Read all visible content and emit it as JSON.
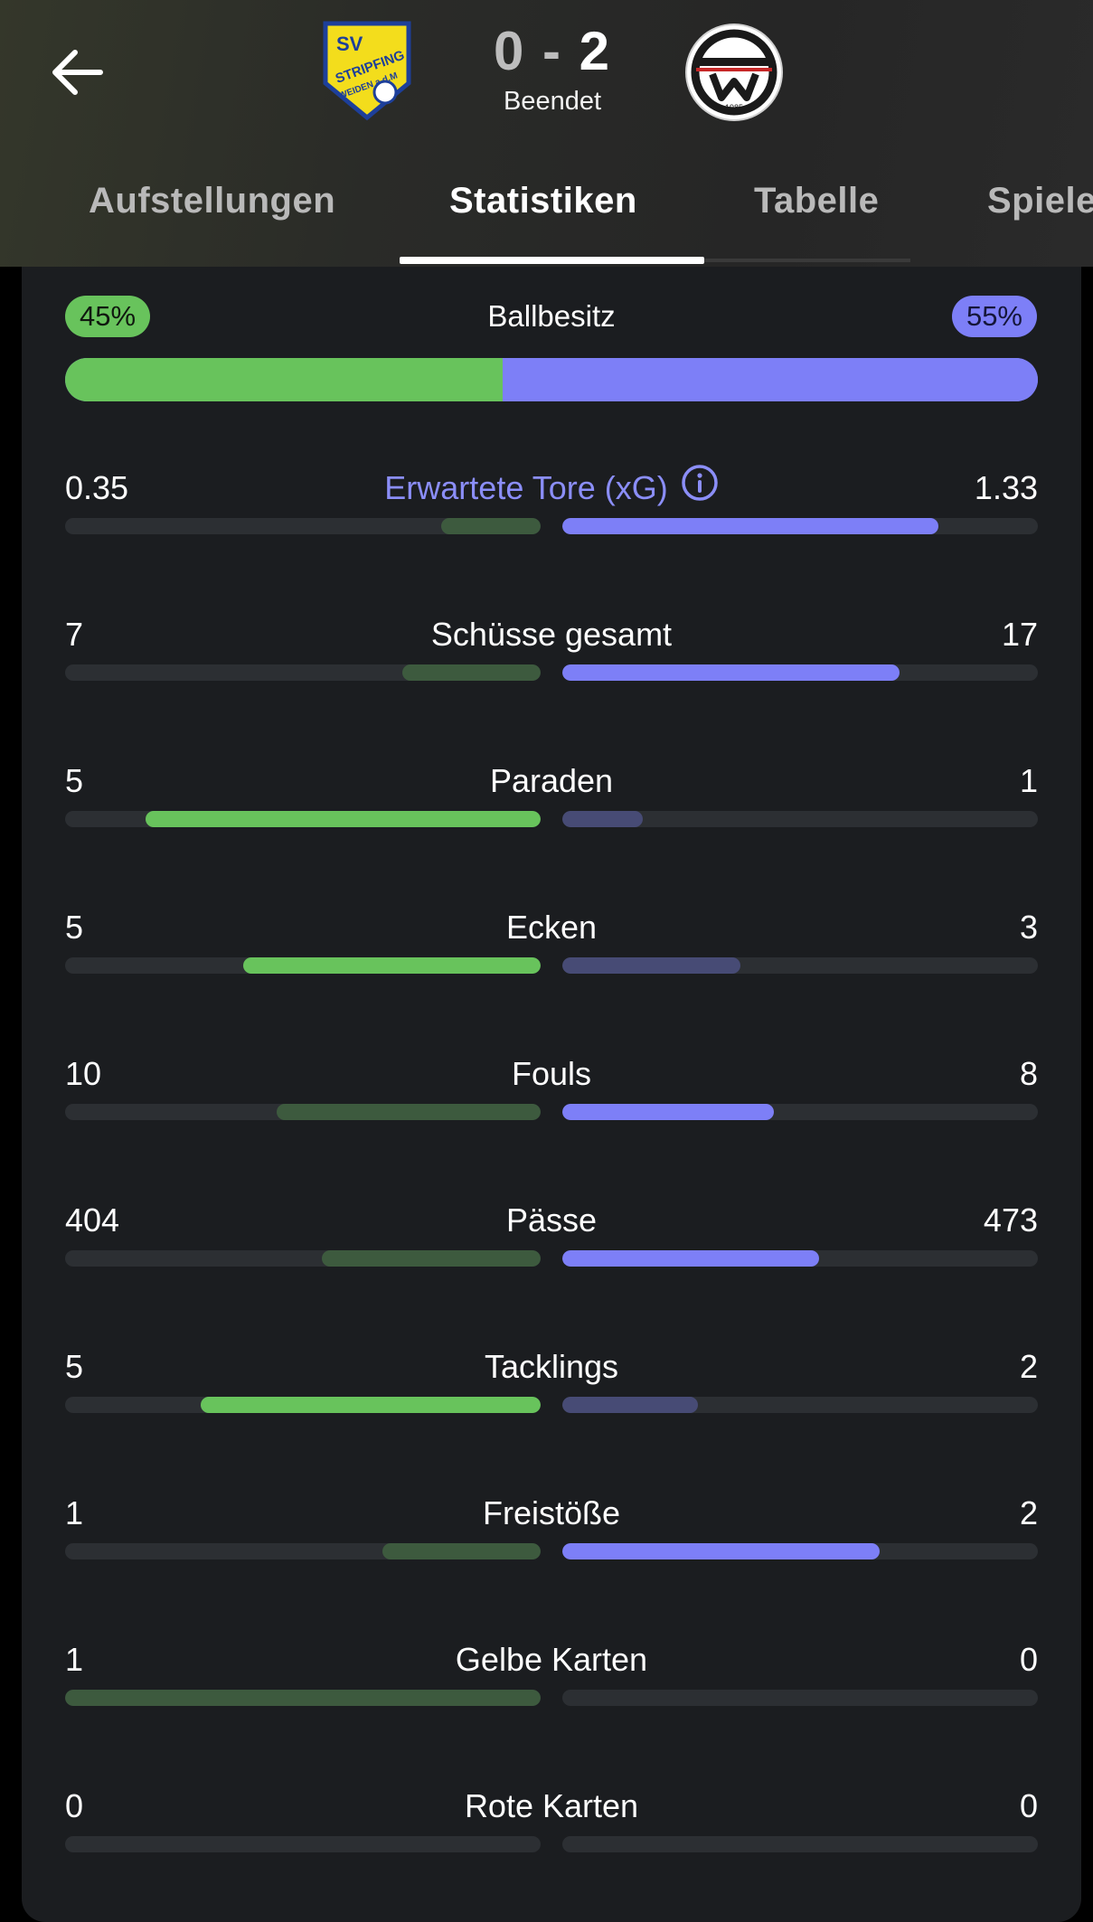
{
  "header": {
    "back_label": "",
    "home_crest": {
      "name": "SV Stripfing crest",
      "line1": "SV",
      "line2": "STRIPFING",
      "line3": "WEIDEN a.d.M"
    },
    "away_crest": {
      "name": "SK Sturm / W crest",
      "year": "1985"
    },
    "score_home": "0",
    "score_sep": "-",
    "score_away": "2",
    "status": "Beendet"
  },
  "tabs": [
    {
      "label": "Aufstellungen",
      "active": false
    },
    {
      "label": "Statistiken",
      "active": true
    },
    {
      "label": "Tabelle",
      "active": false
    },
    {
      "label": "Spiele",
      "active": false
    }
  ],
  "possession": {
    "label": "Ballbesitz",
    "home": "45%",
    "away": "55%",
    "home_fraction": 0.45,
    "away_fraction": 0.55
  },
  "stats": [
    {
      "label": "Erwartete Tore (xG)",
      "home": "0.35",
      "away": "1.33",
      "home_fraction": 0.21,
      "away_fraction": 0.79,
      "winner": "away",
      "link": true
    },
    {
      "label": "Schüsse gesamt",
      "home": "7",
      "away": "17",
      "home_fraction": 0.29,
      "away_fraction": 0.71,
      "winner": "away"
    },
    {
      "label": "Paraden",
      "home": "5",
      "away": "1",
      "home_fraction": 0.83,
      "away_fraction": 0.17,
      "winner": "home"
    },
    {
      "label": "Ecken",
      "home": "5",
      "away": "3",
      "home_fraction": 0.625,
      "away_fraction": 0.375,
      "winner": "home"
    },
    {
      "label": "Fouls",
      "home": "10",
      "away": "8",
      "home_fraction": 0.556,
      "away_fraction": 0.444,
      "winner": "away"
    },
    {
      "label": "Pässe",
      "home": "404",
      "away": "473",
      "home_fraction": 0.461,
      "away_fraction": 0.539,
      "winner": "away"
    },
    {
      "label": "Tacklings",
      "home": "5",
      "away": "2",
      "home_fraction": 0.714,
      "away_fraction": 0.286,
      "winner": "home"
    },
    {
      "label": "Freistöße",
      "home": "1",
      "away": "2",
      "home_fraction": 0.333,
      "away_fraction": 0.667,
      "winner": "away"
    },
    {
      "label": "Gelbe Karten",
      "home": "1",
      "away": "0",
      "home_fraction": 1.0,
      "away_fraction": 0.0,
      "winner": "none"
    },
    {
      "label": "Rote Karten",
      "home": "0",
      "away": "0",
      "home_fraction": 0.0,
      "away_fraction": 0.0,
      "winner": "none"
    }
  ],
  "colors": {
    "home_accent": "#68c35c",
    "home_muted": "#3d5a3e",
    "away_accent": "#7d7ff7",
    "away_muted": "#474b75",
    "track": "#2c2f33",
    "card_bg": "#1b1d20"
  }
}
